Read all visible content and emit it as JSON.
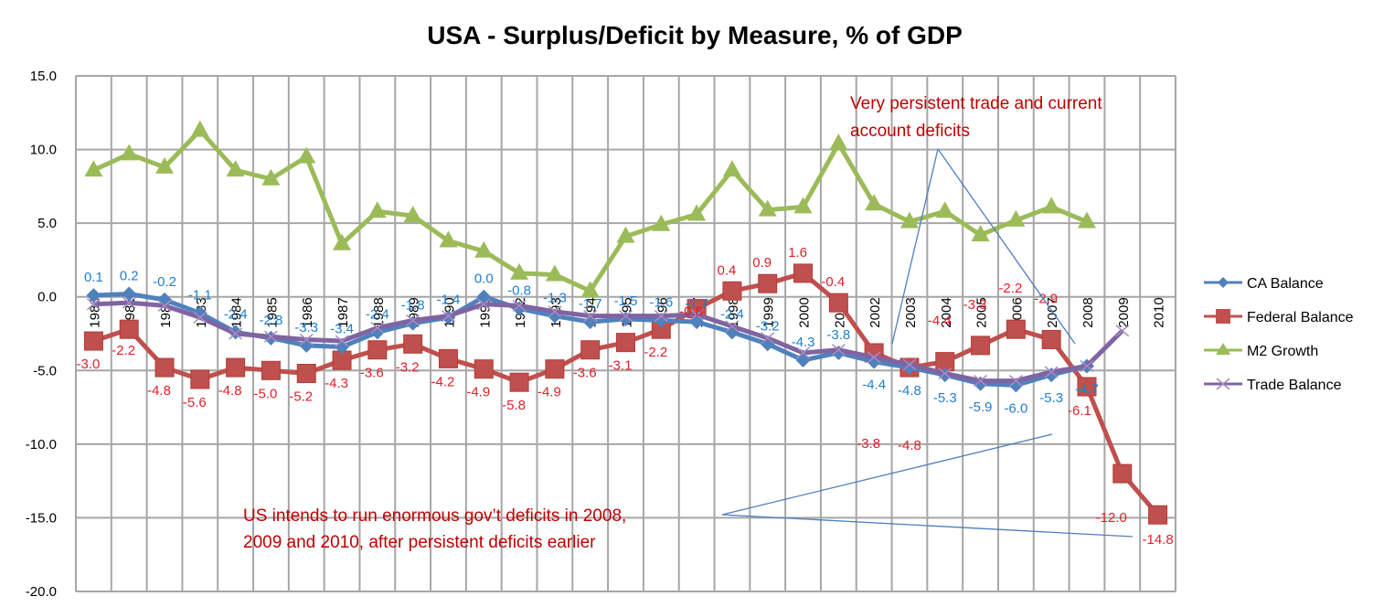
{
  "chart_data": {
    "type": "line",
    "title": "USA - Surplus/Deficit by Measure, % of GDP",
    "xlabel": "",
    "ylabel": "",
    "ylim": [
      -20,
      15
    ],
    "yticks": [
      "15.0",
      "10.0",
      "5.0",
      "0.0",
      "-5.0",
      "-10.0",
      "-15.0",
      "-20.0"
    ],
    "ytick_values": [
      15,
      10,
      5,
      0,
      -5,
      -10,
      -15,
      -20
    ],
    "grid": true,
    "legend_position": "right",
    "x": [
      "1980",
      "1981",
      "1982",
      "1983",
      "1984",
      "1985",
      "1986",
      "1987",
      "1988",
      "1989",
      "1990",
      "1991",
      "1992",
      "1993",
      "1994",
      "1995",
      "1996",
      "1997",
      "1998",
      "1999",
      "2000",
      "2001",
      "2002",
      "2003",
      "2004",
      "2005",
      "2006",
      "2007",
      "2008",
      "2009",
      "2010"
    ],
    "series": [
      {
        "name": "CA Balance",
        "color": "#4f81bd",
        "label_color": "#1f7fd0",
        "marker": "diamond",
        "values": [
          0.1,
          0.2,
          -0.2,
          -1.1,
          -2.4,
          -2.8,
          -3.3,
          -3.4,
          -2.4,
          -1.8,
          -1.4,
          0.0,
          -0.8,
          -1.3,
          -1.7,
          -1.5,
          -1.6,
          -1.7,
          -2.4,
          -3.2,
          -4.3,
          -3.8,
          -4.4,
          -4.8,
          -5.3,
          -5.9,
          -6.0,
          -5.3,
          -4.7,
          null,
          null
        ],
        "labels": [
          "0.1",
          "0.2",
          "-0.2",
          "-1.1",
          "-2.4",
          "-2.8",
          "-3.3",
          "-3.4",
          "-2.4",
          "-1.8",
          "-1.4",
          "0.0",
          "-0.8",
          "-1.3",
          "-1.7",
          "-1.5",
          "-1.6",
          "-1.7",
          "-2.4",
          "-3.2",
          "-4.3",
          "-3.8",
          "-4.4",
          "-4.8",
          "-5.3",
          "-5.9",
          "-6.0",
          "-5.3",
          "-4.7",
          null,
          null
        ]
      },
      {
        "name": "Federal Balance",
        "color": "#c0504d",
        "label_color": "#e0202a",
        "marker": "square",
        "values": [
          -3.0,
          -2.2,
          -4.8,
          -5.6,
          -4.8,
          -5.0,
          -5.2,
          -4.3,
          -3.6,
          -3.2,
          -4.2,
          -4.9,
          -5.8,
          -4.9,
          -3.6,
          -3.1,
          -2.2,
          -0.8,
          0.4,
          0.9,
          1.6,
          -0.4,
          -3.8,
          -4.8,
          -4.4,
          -3.3,
          -2.2,
          -2.9,
          -6.1,
          -12.0,
          -14.8
        ],
        "labels": [
          "-3.0",
          "-2.2",
          "-4.8",
          "-5.6",
          "-4.8",
          "-5.0",
          "-5.2",
          "-4.3",
          "-3.6",
          "-3.2",
          "-4.2",
          "-4.9",
          "-5.8",
          "-4.9",
          "-3.6",
          "-3.1",
          "-2.2",
          "-0.8",
          "0.4",
          "0.9",
          "1.6",
          "-0.4",
          "-3.8",
          "-4.8",
          "-4.4",
          "-3.3",
          "-2.2",
          "-2.9",
          "-6.1",
          "-12.0",
          "-14.8"
        ]
      },
      {
        "name": "M2 Growth",
        "color": "#9bbb59",
        "marker": "triangle",
        "values": [
          8.6,
          9.7,
          8.8,
          11.3,
          8.6,
          8.0,
          9.5,
          3.6,
          5.8,
          5.5,
          3.8,
          3.1,
          1.6,
          1.5,
          0.4,
          4.1,
          4.9,
          5.6,
          8.6,
          5.9,
          6.1,
          10.4,
          6.3,
          5.1,
          5.8,
          4.2,
          5.2,
          6.1,
          5.1,
          null,
          null
        ]
      },
      {
        "name": "Trade Balance",
        "color": "#8064a2",
        "marker": "x",
        "values": [
          -0.5,
          -0.4,
          -0.6,
          -1.4,
          -2.5,
          -2.7,
          -2.9,
          -3.0,
          -2.1,
          -1.6,
          -1.3,
          -0.5,
          -0.6,
          -1.0,
          -1.3,
          -1.3,
          -1.3,
          -1.2,
          -2.0,
          -2.8,
          -3.8,
          -3.6,
          -4.1,
          -4.6,
          -5.2,
          -5.7,
          -5.7,
          -5.1,
          -4.7,
          -2.3,
          null
        ]
      }
    ],
    "annotations": [
      {
        "lines": [
          "Very persistent trade and current",
          "account deficits"
        ],
        "color": "#c00000"
      },
      {
        "lines": [
          "US intends to run enormous gov’t deficits in 2008,",
          "2009 and 2010, after persistent deficits earlier"
        ],
        "color": "#c00000"
      }
    ]
  }
}
